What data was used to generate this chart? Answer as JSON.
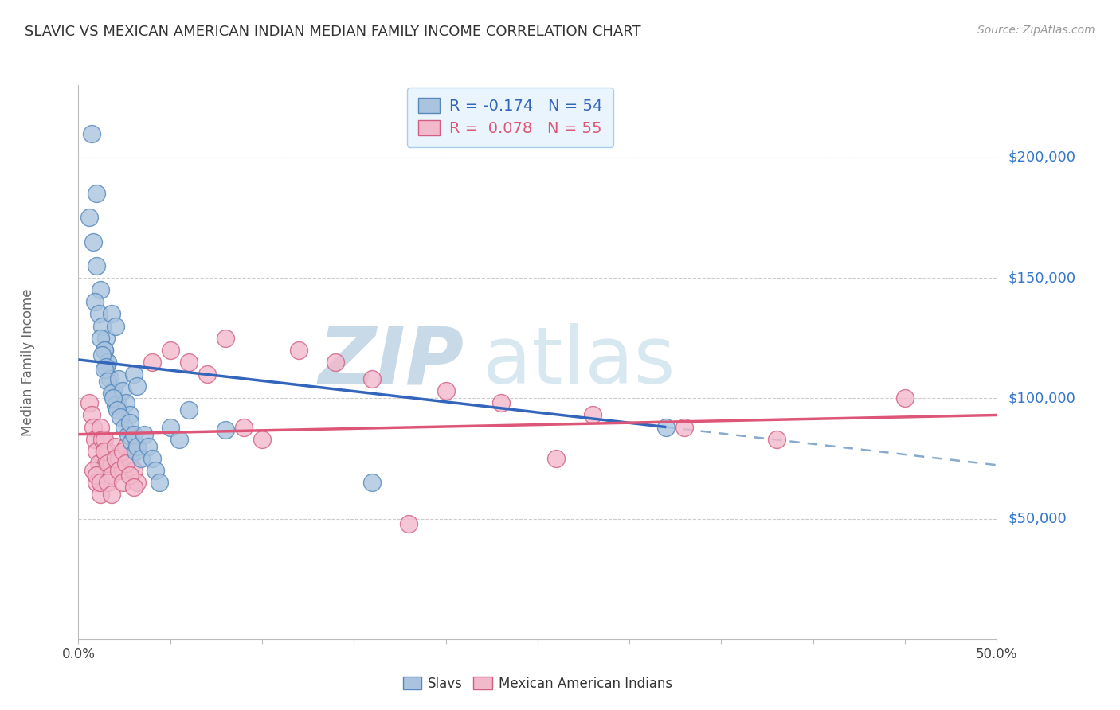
{
  "title": "SLAVIC VS MEXICAN AMERICAN INDIAN MEDIAN FAMILY INCOME CORRELATION CHART",
  "source": "Source: ZipAtlas.com",
  "ylabel": "Median Family Income",
  "ytick_labels": [
    "$50,000",
    "$100,000",
    "$150,000",
    "$200,000"
  ],
  "ytick_values": [
    50000,
    100000,
    150000,
    200000
  ],
  "legend_entry1": "R = -0.174   N = 54",
  "legend_entry2": "R =  0.078   N = 55",
  "legend_label1": "Slavs",
  "legend_label2": "Mexican American Indians",
  "watermark_zip": "ZIP",
  "watermark_atlas": "atlas",
  "xlim": [
    0.0,
    0.5
  ],
  "ylim": [
    0,
    230000
  ],
  "slavs_x": [
    0.007,
    0.01,
    0.006,
    0.008,
    0.01,
    0.012,
    0.009,
    0.011,
    0.013,
    0.015,
    0.014,
    0.016,
    0.018,
    0.02,
    0.012,
    0.014,
    0.016,
    0.013,
    0.015,
    0.017,
    0.019,
    0.021,
    0.014,
    0.016,
    0.018,
    0.02,
    0.022,
    0.024,
    0.026,
    0.028,
    0.03,
    0.032,
    0.019,
    0.021,
    0.023,
    0.025,
    0.027,
    0.029,
    0.031,
    0.028,
    0.03,
    0.032,
    0.034,
    0.036,
    0.038,
    0.04,
    0.042,
    0.044,
    0.05,
    0.055,
    0.06,
    0.32,
    0.16,
    0.08
  ],
  "slavs_y": [
    210000,
    185000,
    175000,
    165000,
    155000,
    145000,
    140000,
    135000,
    130000,
    125000,
    120000,
    115000,
    135000,
    130000,
    125000,
    120000,
    115000,
    118000,
    113000,
    108000,
    103000,
    98000,
    112000,
    107000,
    102000,
    97000,
    108000,
    103000,
    98000,
    93000,
    110000,
    105000,
    100000,
    95000,
    92000,
    88000,
    85000,
    82000,
    78000,
    90000,
    85000,
    80000,
    75000,
    85000,
    80000,
    75000,
    70000,
    65000,
    88000,
    83000,
    95000,
    88000,
    65000,
    87000
  ],
  "mexican_x": [
    0.006,
    0.007,
    0.008,
    0.009,
    0.01,
    0.011,
    0.012,
    0.013,
    0.014,
    0.015,
    0.008,
    0.01,
    0.012,
    0.014,
    0.016,
    0.018,
    0.01,
    0.012,
    0.014,
    0.016,
    0.018,
    0.02,
    0.022,
    0.024,
    0.016,
    0.018,
    0.02,
    0.022,
    0.024,
    0.026,
    0.028,
    0.03,
    0.032,
    0.024,
    0.026,
    0.028,
    0.03,
    0.04,
    0.05,
    0.06,
    0.07,
    0.08,
    0.14,
    0.16,
    0.2,
    0.23,
    0.28,
    0.33,
    0.38,
    0.45,
    0.09,
    0.1,
    0.12,
    0.18,
    0.26
  ],
  "mexican_y": [
    98000,
    93000,
    88000,
    83000,
    78000,
    73000,
    88000,
    83000,
    78000,
    73000,
    70000,
    65000,
    60000,
    83000,
    78000,
    73000,
    68000,
    65000,
    78000,
    73000,
    68000,
    80000,
    75000,
    70000,
    65000,
    60000,
    75000,
    70000,
    65000,
    80000,
    75000,
    70000,
    65000,
    78000,
    73000,
    68000,
    63000,
    115000,
    120000,
    115000,
    110000,
    125000,
    115000,
    108000,
    103000,
    98000,
    93000,
    88000,
    83000,
    100000,
    88000,
    83000,
    120000,
    48000,
    75000
  ],
  "slavs_color": "#aac4df",
  "slavs_edge_color": "#5588bb",
  "mexican_color": "#f2b8cc",
  "mexican_edge_color": "#d06080",
  "slavs_line_color": "#3366bb",
  "mexican_line_color": "#dd5577",
  "dashed_line_color": "#88aacc",
  "title_color": "#333333",
  "ylabel_color": "#666666",
  "ytick_color": "#3377cc",
  "xtick_color": "#444444",
  "grid_color": "#cccccc",
  "source_color": "#999999",
  "watermark_zip_color": "#c8dae8",
  "watermark_atlas_color": "#d8e8f0",
  "legend_box_facecolor": "#eaf4fc",
  "legend_border_color": "#aaccee"
}
